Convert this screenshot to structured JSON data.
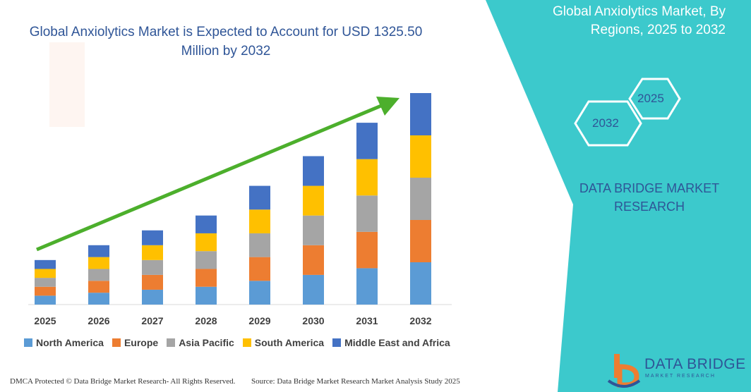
{
  "title": "Global Anxiolytics Market is Expected to Account for USD 1325.50 Million by 2032",
  "side_panel": {
    "title": "Global Anxiolytics Market, By Regions, 2025 to 2032",
    "hex_year_a": "2025",
    "hex_year_b": "2032",
    "brand": "DATA BRIDGE MARKET RESEARCH"
  },
  "footer": {
    "left": "DMCA Protected © Data Bridge Market Research-  All Rights Reserved.",
    "right": "Source: Data Bridge Market Research  Market Analysis Study 2025"
  },
  "logo": {
    "name": "DATA BRIDGE",
    "tagline": "MARKET RESEARCH",
    "icon": "data-bridge-logo-icon"
  },
  "colors": {
    "teal": "#3cc9cc",
    "title_blue": "#2f5597",
    "arrow": "#4caf2c"
  },
  "chart_data": {
    "type": "bar",
    "stacked": true,
    "categories": [
      "2025",
      "2026",
      "2027",
      "2028",
      "2029",
      "2030",
      "2031",
      "2032"
    ],
    "series": [
      {
        "name": "North America",
        "color": "#5b9bd5",
        "values": [
          12,
          16,
          20,
          24,
          32,
          40,
          49,
          57
        ]
      },
      {
        "name": "Europe",
        "color": "#ed7d31",
        "values": [
          12,
          16,
          20,
          24,
          32,
          40,
          49,
          57
        ]
      },
      {
        "name": "Asia Pacific",
        "color": "#a5a5a5",
        "values": [
          12,
          16,
          20,
          24,
          32,
          40,
          49,
          57
        ]
      },
      {
        "name": "South America",
        "color": "#ffc000",
        "values": [
          12,
          16,
          20,
          24,
          32,
          40,
          49,
          57
        ]
      },
      {
        "name": "Middle East and Africa",
        "color": "#4472c4",
        "values": [
          12,
          16,
          20,
          24,
          32,
          40,
          49,
          57
        ]
      }
    ],
    "ylim": [
      0,
      285
    ],
    "grid": false,
    "legend": "bottom",
    "trend_arrow": true
  }
}
